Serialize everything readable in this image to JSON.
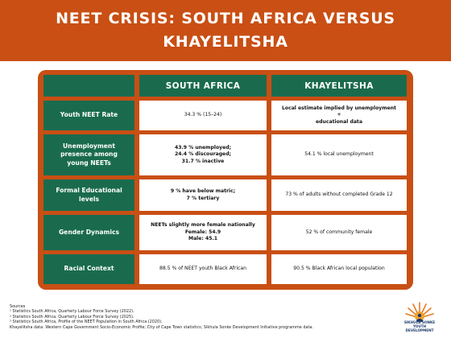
{
  "title": "NEET CRISIS: SOUTH AFRICA VERSUS KHAYELITSHA",
  "colors": {
    "accent": "#c94f14",
    "header_green": "#1a6b4e",
    "cell_white": "#ffffff"
  },
  "table": {
    "headers": [
      "",
      "SOUTH AFRICA",
      "KHAYELITSHA"
    ],
    "rows": [
      {
        "label": "Youth NEET Rate",
        "south_africa": [
          "34.3 % (15–24)"
        ],
        "khayelitsha": [
          "Local estimate implied by unemployment +",
          "educational data"
        ]
      },
      {
        "label": "Unemployment presence among young NEETs",
        "south_africa": [
          "43.9 % unemployed;",
          "24.4 % discouraged;",
          "31.7 % inactive"
        ],
        "khayelitsha": [
          "54.1 % local unemployment"
        ]
      },
      {
        "label": "Formal Educational levels",
        "south_africa": [
          "9 % have below matric;",
          "7 % tertiary"
        ],
        "khayelitsha": [
          "73 % of adults without completed Grade 12"
        ]
      },
      {
        "label": "Gender Dynamics",
        "south_africa": [
          "NEETs slightly more female nationally",
          "Female: 54.9",
          "Male: 45.1"
        ],
        "khayelitsha": [
          "52 % of community female"
        ]
      },
      {
        "label": "Racial Context",
        "south_africa": [
          "88.5 % of NEET youth Black African"
        ],
        "khayelitsha": [
          "90.5 % Black African local population"
        ]
      }
    ]
  },
  "sources": {
    "heading": "Sources",
    "items": [
      "¹ Statistics South Africa, Quarterly Labour Force Survey (2022).",
      "² Statistics South Africa, Quarterly Labour Force Survey (2025).",
      "³ Statistics South Africa, Profile of the NEET Population in South Africa (2020).",
      "Khayelitsha data: Western Cape Government Socio-Economic Profile; City of Cape Town statistics; Sikhula Sonke Development Initiative programme data."
    ]
  },
  "logo": {
    "icon": "sunburst-logo-icon",
    "line1": "SIKHULA SONKE",
    "line2": "YOUTH DEVELOPMENT"
  }
}
